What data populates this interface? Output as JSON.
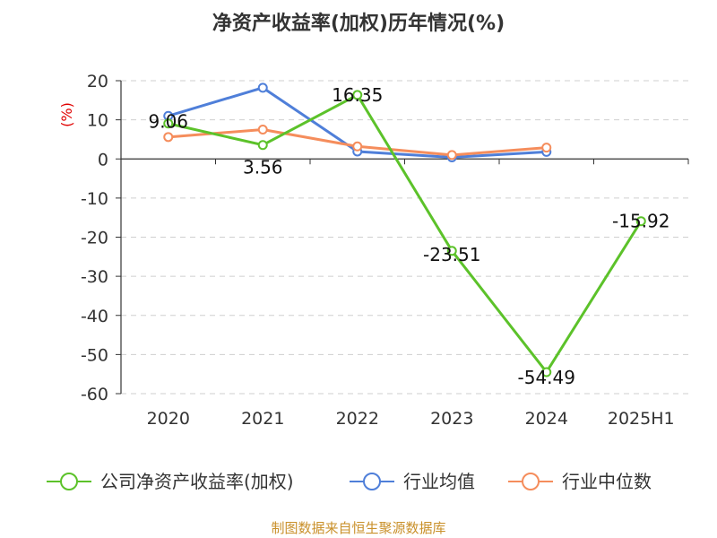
{
  "chart_data": {
    "type": "line",
    "title": "净资产收益率(加权)历年情况(%)",
    "ylabel": "(%)",
    "categories": [
      "2020",
      "2021",
      "2022",
      "2023",
      "2024",
      "2025H1"
    ],
    "ylim": [
      -60,
      20
    ],
    "yticks": [
      20,
      10,
      0,
      -10,
      -20,
      -30,
      -40,
      -50,
      -60
    ],
    "grid": true,
    "legend_position": "bottom",
    "series": [
      {
        "name": "公司净资产收益率(加权)",
        "color": "#5cc22a",
        "values": [
          9.06,
          3.56,
          16.35,
          -23.51,
          -54.49,
          -15.92
        ],
        "labels": [
          "9.06",
          "3.56",
          "16.35",
          "-23.51",
          "-54.49",
          "-15.92"
        ]
      },
      {
        "name": "行业均值",
        "color": "#4f7fd9",
        "values": [
          11.0,
          18.2,
          1.9,
          0.4,
          1.8,
          null
        ]
      },
      {
        "name": "行业中位数",
        "color": "#f58d5c",
        "values": [
          5.6,
          7.5,
          3.2,
          1.0,
          2.9,
          null
        ]
      }
    ],
    "source": "制图数据来自恒生聚源数据库"
  }
}
